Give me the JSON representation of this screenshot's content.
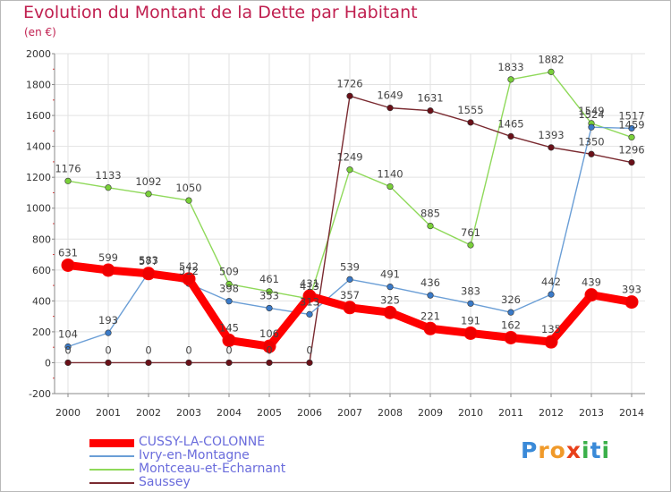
{
  "chart_data": {
    "type": "line",
    "title": "Evolution du Montant de la Dette par Habitant",
    "ylabel": "(en €)",
    "xlabel": "",
    "ylim": [
      -200,
      2000
    ],
    "yticks": [
      -200,
      0,
      200,
      400,
      600,
      800,
      1000,
      1200,
      1400,
      1600,
      1800,
      2000
    ],
    "x": [
      "2000",
      "2001",
      "2002",
      "2003",
      "2004",
      "2005",
      "2006",
      "2007",
      "2008",
      "2009",
      "2010",
      "2011",
      "2012",
      "2013",
      "2014"
    ],
    "grid": true,
    "legend_position": "bottom-left",
    "series": [
      {
        "name": "Montceau-et-Echarnant",
        "color": "#8fd95a",
        "point_color": "#7ad03a",
        "values": [
          1176,
          1133,
          1092,
          1050,
          509,
          461,
          413,
          1249,
          1140,
          885,
          761,
          1833,
          1882,
          1549,
          1459
        ]
      },
      {
        "name": "Saussey",
        "color": "#7a2a30",
        "point_color": "#6a1018",
        "values": [
          0,
          0,
          0,
          0,
          0,
          0,
          0,
          1726,
          1649,
          1631,
          1555,
          1465,
          1393,
          1350,
          1296
        ]
      },
      {
        "name": "Ivry-en-Montagne",
        "color": "#6a9ed6",
        "point_color": "#3a7ac8",
        "values": [
          104,
          193,
          583,
          512,
          398,
          353,
          313,
          539,
          491,
          436,
          383,
          326,
          442,
          1524,
          1517
        ]
      },
      {
        "name": "CUSSY-LA-COLONNE",
        "color": "#ff0000",
        "point_color": "#ee0000",
        "values": [
          631,
          599,
          577,
          542,
          145,
          106,
          431,
          357,
          325,
          221,
          191,
          162,
          135,
          439,
          393
        ]
      }
    ],
    "legend_order": [
      "CUSSY-LA-COLONNE",
      "Ivry-en-Montagne",
      "Montceau-et-Echarnant",
      "Saussey"
    ]
  },
  "logo": {
    "text": "Proxiti",
    "letters": [
      "P",
      "r",
      "o",
      "x",
      "i",
      "t",
      "i"
    ],
    "colors": [
      "#3a8ad8",
      "#f09a2a",
      "#f09a2a",
      "#e8401a",
      "#3ab04a",
      "#3a8ad8",
      "#3ab04a"
    ]
  }
}
